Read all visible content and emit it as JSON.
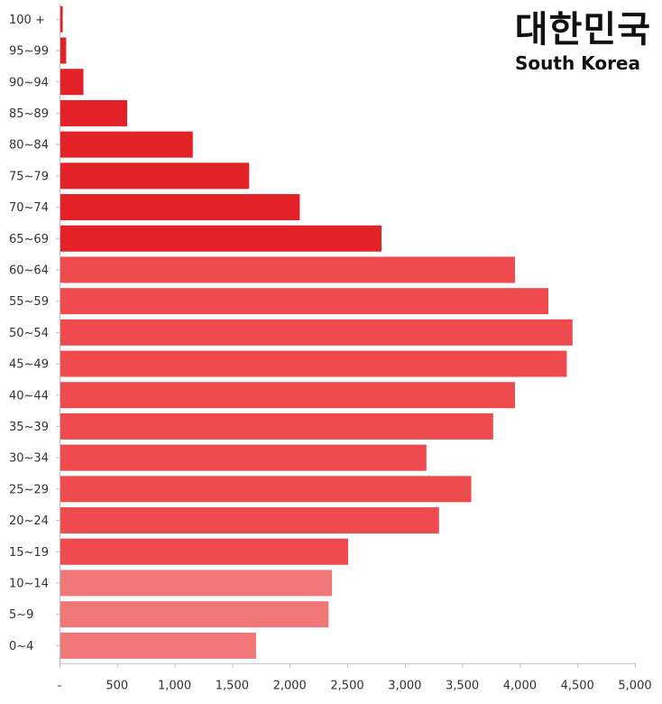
{
  "chart_data": {
    "type": "bar",
    "orientation": "horizontal",
    "title": "대한민국",
    "subtitle": "South Korea",
    "categories": [
      "100 +",
      "95~99",
      "90~94",
      "85~89",
      "80~84",
      "75~79",
      "70~74",
      "65~69",
      "60~64",
      "55~59",
      "50~54",
      "45~49",
      "40~44",
      "35~39",
      "30~34",
      "25~29",
      "20~24",
      "15~19",
      "10~14",
      "5~9",
      "0~4"
    ],
    "values": [
      20,
      50,
      200,
      580,
      1150,
      1640,
      2080,
      2790,
      3950,
      4240,
      4450,
      4400,
      3950,
      3760,
      3180,
      3570,
      3290,
      2500,
      2360,
      2330,
      1700
    ],
    "bar_colors": [
      "#e32227",
      "#e32227",
      "#e32227",
      "#e32227",
      "#e32227",
      "#e32227",
      "#e32227",
      "#e32227",
      "#ef4b4e",
      "#ef4b4e",
      "#ef4b4e",
      "#ef4b4e",
      "#ef4b4e",
      "#ef4b4e",
      "#ef4b4e",
      "#ef4b4e",
      "#ef4b4e",
      "#ef4b4e",
      "#f07678",
      "#f07678",
      "#f07678"
    ],
    "x_ticks": [
      "-",
      "500",
      "1,000",
      "1,500",
      "2,000",
      "2,500",
      "3,000",
      "3,500",
      "4,000",
      "4,500",
      "5,000"
    ],
    "xlim": [
      0,
      5000
    ],
    "grid": false
  }
}
